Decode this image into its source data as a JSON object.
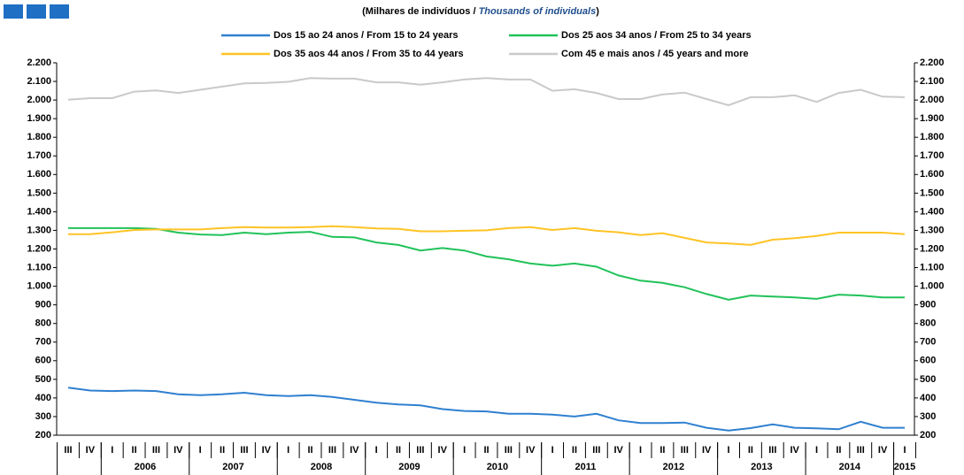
{
  "chart_data": {
    "type": "line",
    "subtitle_parts": [
      "(Milhares de indivíduos  / ",
      "Thousands of individuals",
      ")"
    ],
    "categories": [
      "III",
      "IV",
      "I",
      "II",
      "III",
      "IV",
      "I",
      "II",
      "III",
      "IV",
      "I",
      "II",
      "III",
      "IV",
      "I",
      "II",
      "III",
      "IV",
      "I",
      "II",
      "III",
      "IV",
      "I",
      "II",
      "III",
      "IV",
      "I",
      "II",
      "III",
      "IV",
      "I",
      "II",
      "III",
      "IV",
      "I",
      "II",
      "III",
      "IV",
      "I"
    ],
    "year_labels": [
      "2006",
      "2007",
      "2008",
      "2009",
      "2010",
      "2011",
      "2012",
      "2013",
      "2014",
      "2015"
    ],
    "series": [
      {
        "name": "Dos 15 ao 24 anos / From 15 to 24 years",
        "color": "#2f80d0",
        "values": [
          455,
          440,
          437,
          440,
          437,
          420,
          415,
          420,
          428,
          415,
          410,
          415,
          405,
          390,
          375,
          365,
          360,
          340,
          330,
          328,
          315,
          315,
          310,
          300,
          315,
          280,
          265,
          265,
          268,
          240,
          225,
          238,
          258,
          240,
          237,
          232,
          272,
          240,
          240
        ]
      },
      {
        "name": "Dos 25 aos 34 anos / From 25 to 34 years",
        "color": "#21c25a",
        "values": [
          1312,
          1312,
          1312,
          1312,
          1308,
          1288,
          1278,
          1275,
          1288,
          1280,
          1288,
          1292,
          1265,
          1262,
          1235,
          1222,
          1192,
          1205,
          1192,
          1160,
          1145,
          1122,
          1110,
          1122,
          1105,
          1058,
          1030,
          1018,
          995,
          958,
          928,
          950,
          945,
          940,
          932,
          955,
          950,
          940,
          940
        ]
      },
      {
        "name": "Dos 35 aos 44 anos / From 35 to 44 years",
        "color": "#ffc324",
        "values": [
          1280,
          1280,
          1290,
          1302,
          1305,
          1305,
          1305,
          1312,
          1318,
          1315,
          1315,
          1318,
          1322,
          1318,
          1310,
          1308,
          1295,
          1295,
          1298,
          1300,
          1312,
          1318,
          1302,
          1312,
          1298,
          1290,
          1275,
          1285,
          1260,
          1235,
          1230,
          1222,
          1250,
          1258,
          1270,
          1288,
          1288,
          1288,
          1280
        ]
      },
      {
        "name": "Com 45 e mais anos / 45 years and more",
        "color": "#c9c9c9",
        "values": [
          2002,
          2010,
          2010,
          2045,
          2052,
          2038,
          2055,
          2072,
          2090,
          2092,
          2098,
          2118,
          2115,
          2115,
          2095,
          2095,
          2082,
          2095,
          2110,
          2118,
          2110,
          2110,
          2050,
          2058,
          2038,
          2005,
          2005,
          2030,
          2040,
          2005,
          1972,
          2015,
          2015,
          2025,
          1990,
          2038,
          2055,
          2018,
          2015
        ]
      }
    ],
    "ylim": [
      200,
      2200
    ],
    "yticks": [
      {
        "value": 200,
        "label": "200"
      },
      {
        "value": 300,
        "label": "300"
      },
      {
        "value": 400,
        "label": "400"
      },
      {
        "value": 500,
        "label": "500"
      },
      {
        "value": 600,
        "label": "600"
      },
      {
        "value": 700,
        "label": "700"
      },
      {
        "value": 800,
        "label": "800"
      },
      {
        "value": 900,
        "label": "900"
      },
      {
        "value": 1000,
        "label": "1.000"
      },
      {
        "value": 1100,
        "label": "1.100"
      },
      {
        "value": 1200,
        "label": "1.200"
      },
      {
        "value": 1300,
        "label": "1.300"
      },
      {
        "value": 1400,
        "label": "1.400"
      },
      {
        "value": 1500,
        "label": "1.500"
      },
      {
        "value": 1600,
        "label": "1.600"
      },
      {
        "value": 1700,
        "label": "1.700"
      },
      {
        "value": 1800,
        "label": "1.800"
      },
      {
        "value": 1900,
        "label": "1.900"
      },
      {
        "value": 2000,
        "label": "2.000"
      },
      {
        "value": 2100,
        "label": "2.100"
      },
      {
        "value": 2200,
        "label": "2.200"
      }
    ],
    "y2lim": [
      200,
      2200
    ],
    "y2ticks": [
      {
        "value": 200,
        "label": "200"
      },
      {
        "value": 300,
        "label": "300"
      },
      {
        "value": 400,
        "label": "400"
      },
      {
        "value": 500,
        "label": "500"
      },
      {
        "value": 600,
        "label": "600"
      },
      {
        "value": 700,
        "label": "700"
      },
      {
        "value": 800,
        "label": "800"
      },
      {
        "value": 900,
        "label": "900"
      },
      {
        "value": 1000,
        "label": "1.000"
      },
      {
        "value": 1100,
        "label": "1.100"
      },
      {
        "value": 1200,
        "label": "1.200"
      },
      {
        "value": 1300,
        "label": "1.300"
      },
      {
        "value": 1400,
        "label": "1.400"
      },
      {
        "value": 1500,
        "label": "1.500"
      },
      {
        "value": 1600,
        "label": "1.600"
      },
      {
        "value": 1700,
        "label": "1.700"
      },
      {
        "value": 1800,
        "label": "1.800"
      },
      {
        "value": 1900,
        "label": "1.900"
      },
      {
        "value": 2000,
        "label": "2.000"
      },
      {
        "value": 2100,
        "label": "2.100"
      },
      {
        "value": 2200,
        "label": "2.200"
      }
    ]
  }
}
